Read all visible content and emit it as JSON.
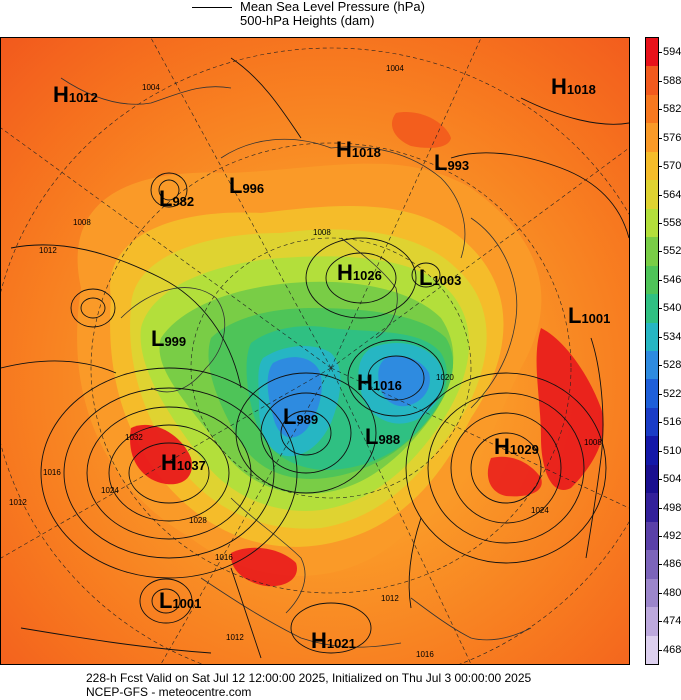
{
  "legend": {
    "pressure_label": "Mean Sea Level Pressure (hPa)",
    "heights_label": "500-hPa Heights (dam)"
  },
  "colorbar": {
    "levels": [
      "594",
      "588",
      "582",
      "576",
      "570",
      "564",
      "558",
      "552",
      "546",
      "540",
      "534",
      "528",
      "522",
      "516",
      "510",
      "504",
      "498",
      "492",
      "486",
      "480",
      "474",
      "468"
    ],
    "colors": [
      "#e8121b",
      "#f25a1d",
      "#f7781f",
      "#fa9a28",
      "#f5bc2a",
      "#dfd331",
      "#b3df3b",
      "#79cd46",
      "#4ec458",
      "#2fc082",
      "#26b6c3",
      "#2e8be0",
      "#1e5fd9",
      "#1a3cc6",
      "#1418a8",
      "#1a0f8f",
      "#33209a",
      "#5a40a8",
      "#7c64ba",
      "#9c86cb",
      "#bda9dd",
      "#ddd0ef"
    ]
  },
  "systems": [
    {
      "type": "H",
      "value": "1012"
    },
    {
      "type": "H",
      "value": "1018"
    },
    {
      "type": "H",
      "value": "1018"
    },
    {
      "type": "L",
      "value": "993"
    },
    {
      "type": "L",
      "value": "996"
    },
    {
      "type": "L",
      "value": "982"
    },
    {
      "type": "H",
      "value": "1026"
    },
    {
      "type": "L",
      "value": "1003"
    },
    {
      "type": "L",
      "value": "1001"
    },
    {
      "type": "L",
      "value": "999"
    },
    {
      "type": "H",
      "value": "1016"
    },
    {
      "type": "L",
      "value": "989"
    },
    {
      "type": "L",
      "value": "988"
    },
    {
      "type": "H",
      "value": "1037"
    },
    {
      "type": "H",
      "value": "1029"
    },
    {
      "type": "L",
      "value": "1001"
    },
    {
      "type": "H",
      "value": "1021"
    }
  ],
  "isobar_labels": [
    "1004",
    "1004",
    "1008",
    "1012",
    "1008",
    "1024",
    "1028",
    "1032",
    "1016",
    "1012",
    "1008",
    "1024",
    "1012",
    "1016",
    "1012",
    "1016",
    "1020"
  ],
  "footer": {
    "line1": "228-h Fcst Valid on Sat Jul 12 12:00:00 2025, Initialized on Thu Jul  3 00:00:00 2025",
    "line2": "NCEP-GFS  - meteocentre.com"
  }
}
